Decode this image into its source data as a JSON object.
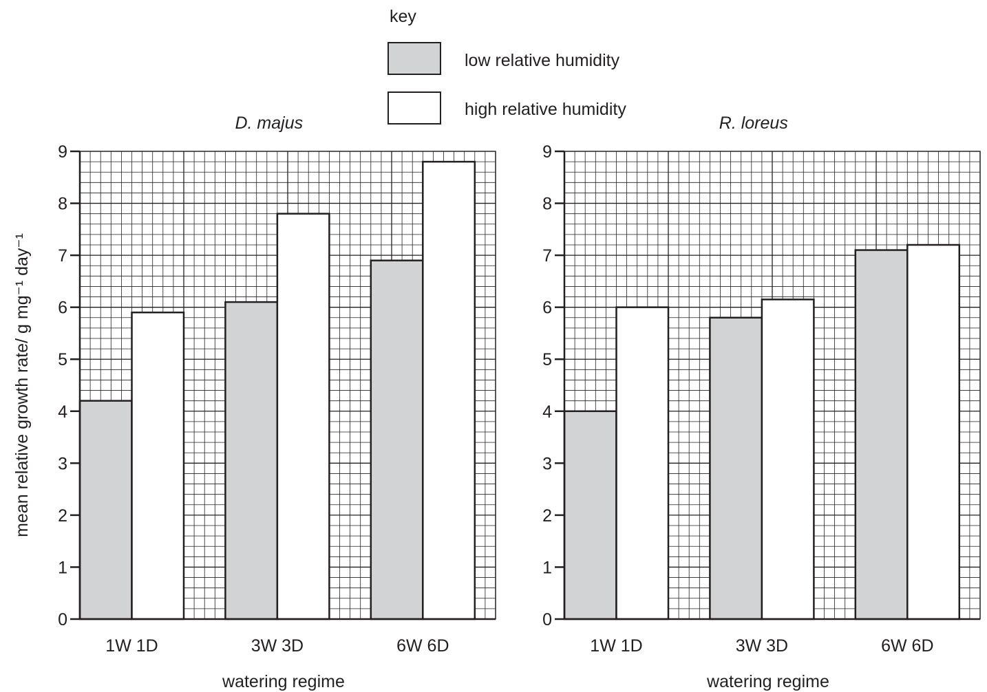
{
  "legend": {
    "title": "key",
    "items": [
      {
        "label": "low relative humidity",
        "color": "#d1d3d4"
      },
      {
        "label": "high relative humidity",
        "color": "#ffffff"
      }
    ]
  },
  "y_axis_label": "mean relative growth rate/ g mg⁻¹ day⁻¹",
  "chart_data": [
    {
      "type": "bar",
      "title": "D. majus",
      "xlabel": "watering regime",
      "ylabel": "mean relative growth rate/ g mg⁻¹ day⁻¹",
      "categories": [
        "1W 1D",
        "3W 3D",
        "6W 6D"
      ],
      "series": [
        {
          "name": "low relative humidity",
          "values": [
            4.2,
            6.1,
            6.9
          ],
          "color": "#d1d3d4"
        },
        {
          "name": "high relative humidity",
          "values": [
            5.9,
            7.8,
            8.8
          ],
          "color": "#ffffff"
        }
      ],
      "ylim": [
        0,
        9
      ],
      "yticks": [
        "0",
        "1",
        "2",
        "3",
        "4",
        "5",
        "6",
        "7",
        "8",
        "9"
      ],
      "grid": true,
      "legend_placement": "top-center"
    },
    {
      "type": "bar",
      "title": "R. loreus",
      "xlabel": "watering regime",
      "ylabel": "mean relative growth rate/ g mg⁻¹ day⁻¹",
      "categories": [
        "1W 1D",
        "3W 3D",
        "6W 6D"
      ],
      "series": [
        {
          "name": "low relative humidity",
          "values": [
            4.0,
            5.8,
            7.1
          ],
          "color": "#d1d3d4"
        },
        {
          "name": "high relative humidity",
          "values": [
            6.0,
            6.15,
            7.2
          ],
          "color": "#ffffff"
        }
      ],
      "ylim": [
        0,
        9
      ],
      "yticks": [
        "0",
        "1",
        "2",
        "3",
        "4",
        "5",
        "6",
        "7",
        "8",
        "9"
      ],
      "grid": true,
      "legend_placement": "top-center"
    }
  ]
}
